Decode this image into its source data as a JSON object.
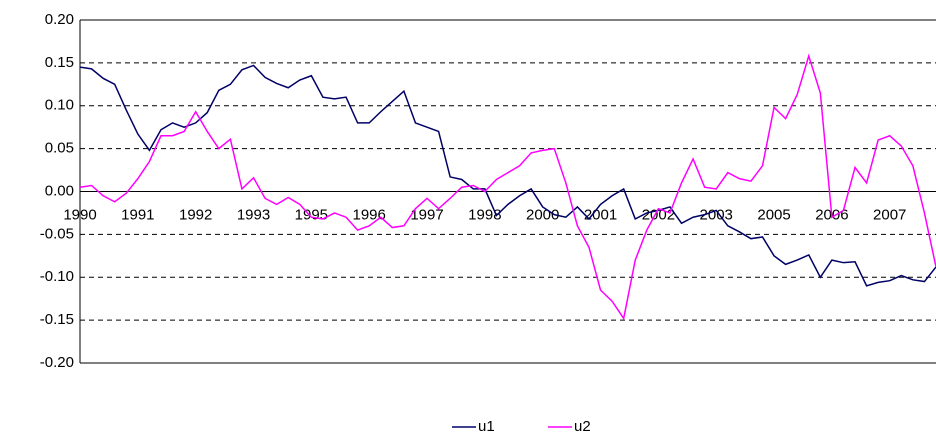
{
  "chart_data": {
    "type": "line",
    "categories": [
      "1990",
      null,
      null,
      null,
      null,
      "1991",
      null,
      null,
      null,
      null,
      "1992",
      null,
      null,
      null,
      null,
      "1993",
      null,
      null,
      null,
      null,
      "1995",
      null,
      null,
      null,
      null,
      "1996",
      null,
      null,
      null,
      null,
      "1997",
      null,
      null,
      null,
      null,
      "1998",
      null,
      null,
      null,
      null,
      "2000",
      null,
      null,
      null,
      null,
      "2001",
      null,
      null,
      null,
      null,
      "2002",
      null,
      null,
      null,
      null,
      "2003",
      null,
      null,
      null,
      null,
      "2005",
      null,
      null,
      null,
      null,
      "2006",
      null,
      null,
      null,
      null,
      "2007",
      null,
      null,
      null,
      null
    ],
    "series": [
      {
        "name": "u1",
        "color": "#000066",
        "values": [
          0.145,
          0.143,
          0.132,
          0.125,
          0.095,
          0.067,
          0.048,
          0.072,
          0.08,
          0.075,
          0.08,
          0.092,
          0.118,
          0.125,
          0.142,
          0.147,
          0.133,
          0.126,
          0.121,
          0.13,
          0.135,
          0.11,
          0.108,
          0.11,
          0.08,
          0.08,
          0.093,
          0.105,
          0.117,
          0.08,
          0.075,
          0.07,
          0.017,
          0.014,
          0.003,
          0.003,
          -0.028,
          -0.015,
          -0.005,
          0.003,
          -0.018,
          -0.027,
          -0.03,
          -0.018,
          -0.032,
          -0.015,
          -0.005,
          0.003,
          -0.032,
          -0.025,
          -0.022,
          -0.018,
          -0.037,
          -0.03,
          -0.027,
          -0.022,
          -0.04,
          -0.047,
          -0.055,
          -0.053,
          -0.075,
          -0.085,
          -0.08,
          -0.074,
          -0.1,
          -0.08,
          -0.083,
          -0.082,
          -0.11,
          -0.106,
          -0.104,
          -0.098,
          -0.103,
          -0.105,
          -0.088
        ]
      },
      {
        "name": "u2",
        "color": "#ff00ff",
        "values": [
          0.005,
          0.007,
          -0.005,
          -0.012,
          -0.002,
          0.015,
          0.035,
          0.065,
          0.065,
          0.07,
          0.093,
          0.07,
          0.05,
          0.061,
          0.003,
          0.016,
          -0.008,
          -0.015,
          -0.007,
          -0.015,
          -0.03,
          -0.032,
          -0.025,
          -0.03,
          -0.045,
          -0.04,
          -0.03,
          -0.042,
          -0.04,
          -0.02,
          -0.008,
          -0.02,
          -0.008,
          0.005,
          0.007,
          0.0,
          0.014,
          0.022,
          0.03,
          0.045,
          0.048,
          0.05,
          0.01,
          -0.04,
          -0.065,
          -0.115,
          -0.128,
          -0.148,
          -0.08,
          -0.045,
          -0.02,
          -0.025,
          0.01,
          0.038,
          0.005,
          0.003,
          0.022,
          0.015,
          0.012,
          0.03,
          0.098,
          0.085,
          0.113,
          0.158,
          0.115,
          -0.03,
          -0.022,
          0.028,
          0.01,
          0.06,
          0.065,
          0.053,
          0.03,
          -0.025,
          -0.088
        ]
      }
    ],
    "ylim": [
      -0.2,
      0.2
    ],
    "yticks": [
      {
        "value": -0.2,
        "label": "-0.20"
      },
      -0.15,
      {
        "value": -0.1,
        "label": "-0.10"
      },
      -0.05,
      {
        "value": 0,
        "label": "0.00"
      },
      0.05,
      {
        "value": 0.1,
        "label": "0.10"
      },
      0.15,
      {
        "value": 0.2,
        "label": "0.20"
      }
    ],
    "grid": true
  }
}
